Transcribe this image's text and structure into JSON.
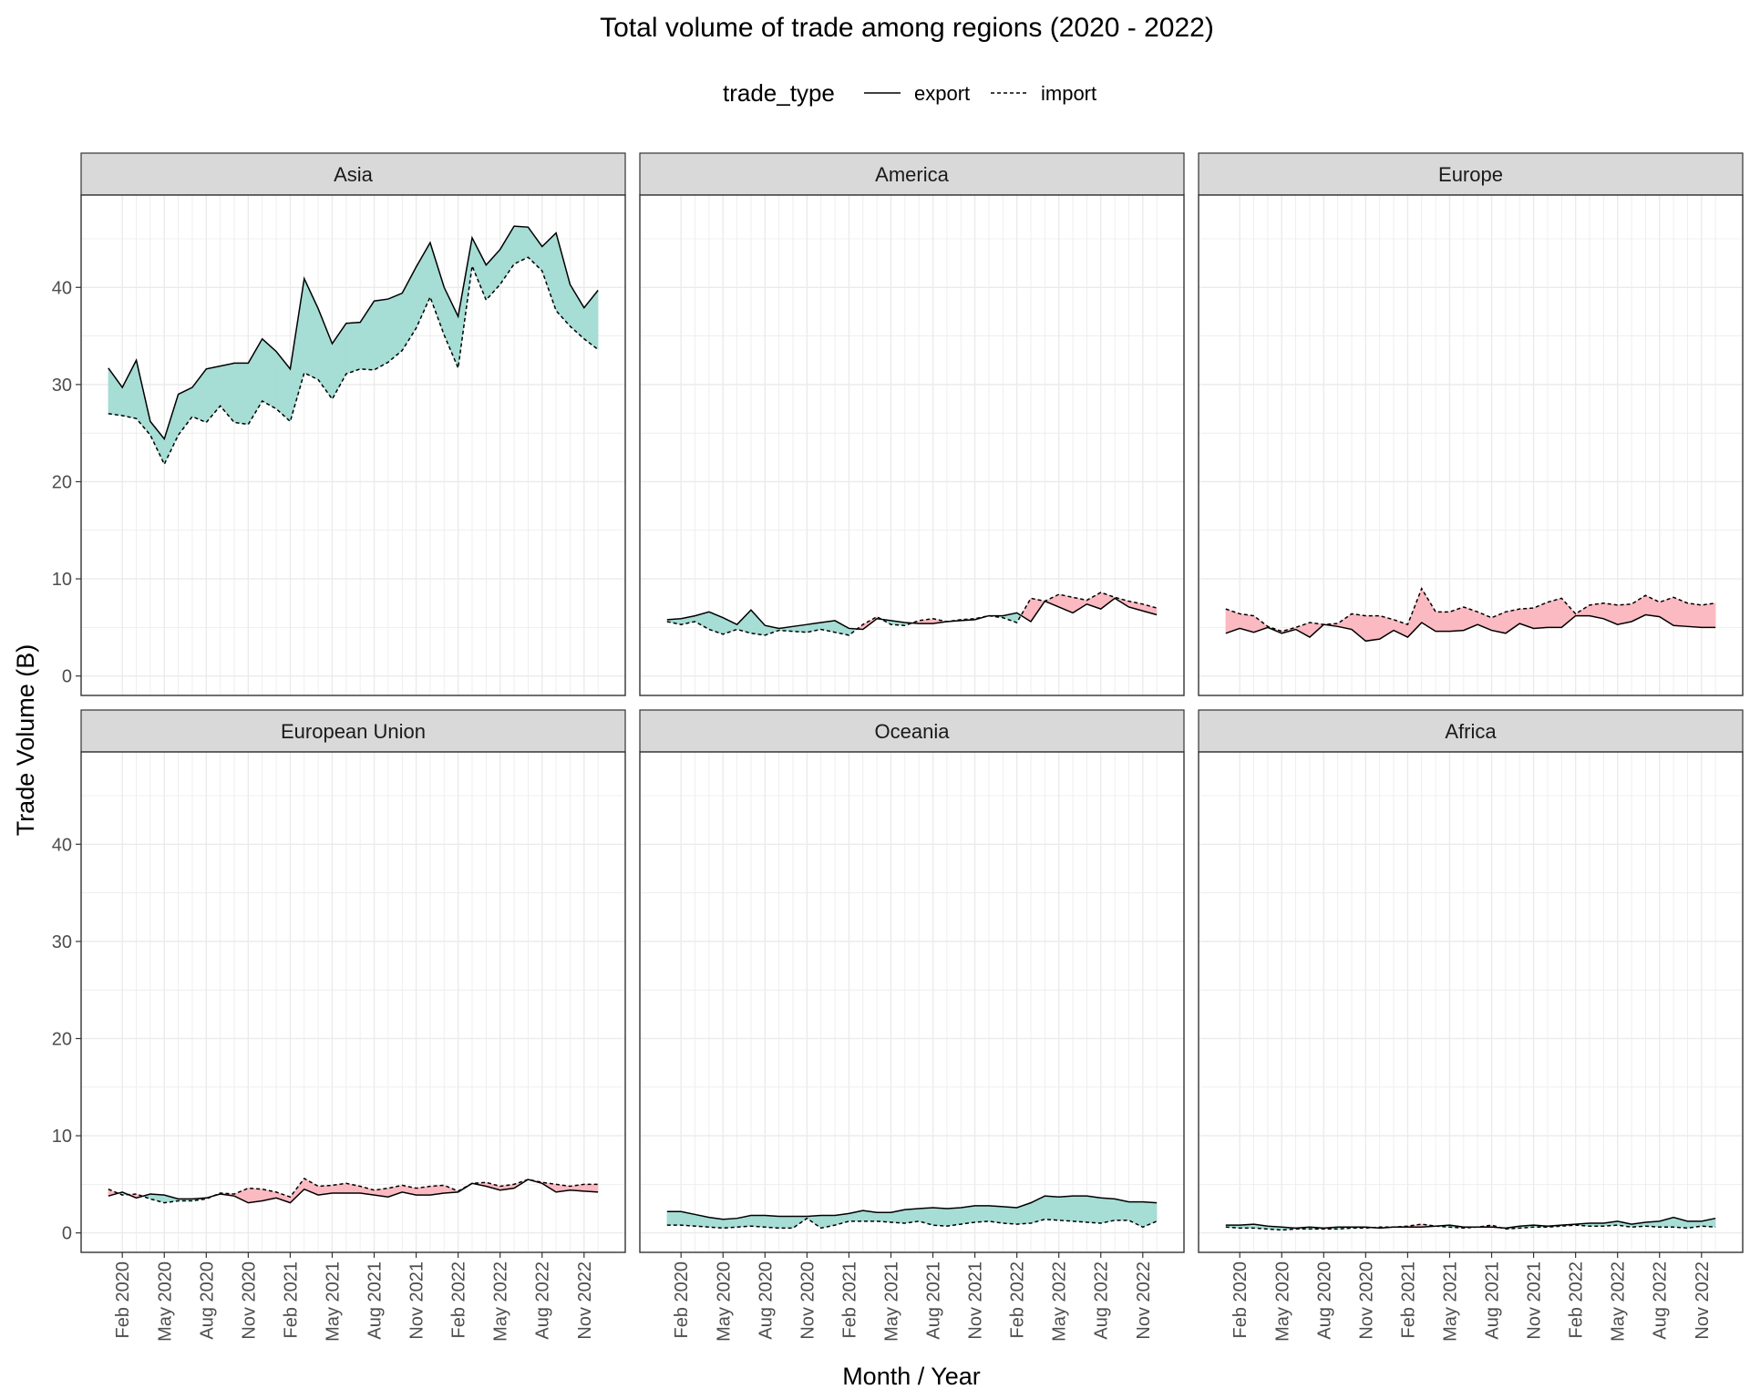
{
  "chart_data": {
    "type": "area",
    "title": "Total volume of trade among regions (2020 - 2022)",
    "xlabel": "Month / Year",
    "ylabel": "Trade Volume (B)",
    "legend": {
      "title": "trade_type",
      "placement": "top",
      "items": [
        {
          "name": "export",
          "linetype": "solid"
        },
        {
          "name": "import",
          "linetype": "dashed"
        }
      ]
    },
    "colors": {
      "export_greater_fill": "#a6ddd5",
      "import_greater_fill": "#fbbac1",
      "line": "#000000",
      "strip_bg": "#d9d9d9",
      "grid": "#ebebeb"
    },
    "ylim": [
      -2,
      49.5
    ],
    "y_ticks": [
      0,
      10,
      20,
      30,
      40
    ],
    "x_ticks": [
      "Feb 2020",
      "May 2020",
      "Aug 2020",
      "Nov 2020",
      "Feb 2021",
      "May 2021",
      "Aug 2021",
      "Nov 2021",
      "Feb 2022",
      "May 2022",
      "Aug 2022",
      "Nov 2022"
    ],
    "x": [
      "Jan 2020",
      "Feb 2020",
      "Mar 2020",
      "Apr 2020",
      "May 2020",
      "Jun 2020",
      "Jul 2020",
      "Aug 2020",
      "Sep 2020",
      "Oct 2020",
      "Nov 2020",
      "Dec 2020",
      "Jan 2021",
      "Feb 2021",
      "Mar 2021",
      "Apr 2021",
      "May 2021",
      "Jun 2021",
      "Jul 2021",
      "Aug 2021",
      "Sep 2021",
      "Oct 2021",
      "Nov 2021",
      "Dec 2021",
      "Jan 2022",
      "Feb 2022",
      "Mar 2022",
      "Apr 2022",
      "May 2022",
      "Jun 2022",
      "Jul 2022",
      "Aug 2022",
      "Sep 2022",
      "Oct 2022",
      "Nov 2022",
      "Dec 2022"
    ],
    "facets": [
      {
        "name": "Asia",
        "export": [
          31.7,
          29.7,
          32.5,
          26.2,
          24.4,
          29.0,
          29.7,
          31.6,
          31.9,
          32.2,
          32.2,
          34.7,
          33.4,
          31.6,
          40.9,
          37.8,
          34.2,
          36.3,
          36.4,
          38.6,
          38.8,
          39.4,
          42.1,
          44.6,
          40.0,
          37.0,
          45.1,
          42.3,
          43.9,
          46.3,
          46.2,
          44.2,
          45.6,
          40.3,
          37.9,
          39.7
        ],
        "import": [
          27.0,
          26.8,
          26.5,
          24.8,
          21.8,
          24.8,
          26.7,
          26.1,
          27.8,
          26.1,
          25.9,
          28.3,
          27.5,
          26.2,
          31.2,
          30.5,
          28.5,
          31.1,
          31.6,
          31.5,
          32.3,
          33.5,
          35.8,
          39.0,
          35.1,
          31.7,
          42.2,
          38.7,
          40.3,
          42.4,
          43.1,
          41.7,
          37.6,
          36.0,
          34.7,
          33.6
        ]
      },
      {
        "name": "America",
        "export": [
          5.8,
          5.9,
          6.2,
          6.6,
          6.0,
          5.3,
          6.8,
          5.2,
          4.9,
          5.1,
          5.3,
          5.5,
          5.7,
          4.9,
          4.8,
          5.9,
          5.7,
          5.5,
          5.4,
          5.4,
          5.6,
          5.7,
          5.8,
          6.2,
          6.2,
          6.5,
          5.6,
          7.7,
          7.1,
          6.5,
          7.4,
          6.9,
          8.0,
          7.1,
          6.7,
          6.3
        ],
        "import": [
          5.6,
          5.3,
          5.6,
          4.8,
          4.3,
          4.8,
          4.4,
          4.2,
          4.7,
          4.6,
          4.5,
          4.8,
          4.5,
          4.2,
          5.3,
          6.1,
          5.3,
          5.2,
          5.7,
          5.9,
          5.6,
          5.8,
          5.9,
          6.2,
          6.0,
          5.5,
          8.0,
          7.7,
          8.4,
          8.1,
          7.8,
          8.6,
          8.1,
          7.7,
          7.4,
          7.0
        ]
      },
      {
        "name": "Europe",
        "export": [
          4.4,
          4.9,
          4.5,
          5.0,
          4.4,
          4.8,
          4.0,
          5.3,
          5.1,
          4.8,
          3.6,
          3.8,
          4.7,
          4.0,
          5.5,
          4.6,
          4.6,
          4.7,
          5.3,
          4.7,
          4.4,
          5.4,
          4.9,
          5.0,
          5.0,
          6.2,
          6.2,
          5.9,
          5.3,
          5.6,
          6.3,
          6.1,
          5.2,
          5.1,
          5.0,
          5.0
        ],
        "import": [
          6.9,
          6.4,
          6.2,
          5.1,
          4.6,
          5.0,
          5.5,
          5.3,
          5.4,
          6.4,
          6.2,
          6.2,
          5.8,
          5.3,
          9.0,
          6.6,
          6.6,
          7.1,
          6.6,
          6.0,
          6.6,
          6.9,
          7.0,
          7.6,
          8.0,
          6.4,
          7.3,
          7.5,
          7.3,
          7.4,
          8.3,
          7.6,
          8.1,
          7.5,
          7.3,
          7.5
        ]
      },
      {
        "name": "European Union",
        "export": [
          3.8,
          4.2,
          3.6,
          4.0,
          3.9,
          3.5,
          3.5,
          3.6,
          4.0,
          3.8,
          3.1,
          3.3,
          3.6,
          3.1,
          4.5,
          3.9,
          4.1,
          4.1,
          4.1,
          3.9,
          3.7,
          4.2,
          3.9,
          3.9,
          4.1,
          4.2,
          5.1,
          4.8,
          4.4,
          4.6,
          5.5,
          5.1,
          4.2,
          4.4,
          4.3,
          4.2
        ],
        "import": [
          4.5,
          3.9,
          4.0,
          3.5,
          3.1,
          3.3,
          3.3,
          3.5,
          4.1,
          4.0,
          4.6,
          4.5,
          4.2,
          3.7,
          5.6,
          4.8,
          4.9,
          5.1,
          4.8,
          4.4,
          4.6,
          4.9,
          4.6,
          4.8,
          4.9,
          4.3,
          5.1,
          5.2,
          4.8,
          5.0,
          5.5,
          5.2,
          5.0,
          4.8,
          5.0,
          5.0
        ]
      },
      {
        "name": "Oceania",
        "export": [
          2.2,
          2.2,
          1.9,
          1.6,
          1.4,
          1.5,
          1.8,
          1.8,
          1.7,
          1.7,
          1.7,
          1.8,
          1.8,
          2.0,
          2.3,
          2.1,
          2.1,
          2.4,
          2.5,
          2.6,
          2.5,
          2.6,
          2.8,
          2.8,
          2.7,
          2.6,
          3.1,
          3.8,
          3.7,
          3.8,
          3.8,
          3.6,
          3.5,
          3.2,
          3.2,
          3.1
        ],
        "import": [
          0.8,
          0.8,
          0.7,
          0.6,
          0.5,
          0.6,
          0.7,
          0.6,
          0.5,
          0.5,
          1.5,
          0.5,
          0.8,
          1.2,
          1.2,
          1.2,
          1.1,
          1.0,
          1.2,
          0.8,
          0.7,
          0.9,
          1.1,
          1.2,
          1.0,
          0.9,
          1.0,
          1.4,
          1.3,
          1.2,
          1.1,
          1.0,
          1.3,
          1.3,
          0.6,
          1.2
        ]
      },
      {
        "name": "Africa",
        "export": [
          0.8,
          0.8,
          0.9,
          0.7,
          0.6,
          0.5,
          0.6,
          0.5,
          0.6,
          0.6,
          0.6,
          0.5,
          0.6,
          0.6,
          0.6,
          0.7,
          0.8,
          0.6,
          0.6,
          0.6,
          0.5,
          0.7,
          0.8,
          0.7,
          0.8,
          0.9,
          1.0,
          1.0,
          1.2,
          0.9,
          1.1,
          1.2,
          1.6,
          1.2,
          1.2,
          1.5
        ],
        "import": [
          0.6,
          0.5,
          0.5,
          0.4,
          0.3,
          0.4,
          0.4,
          0.4,
          0.4,
          0.5,
          0.5,
          0.6,
          0.6,
          0.7,
          0.9,
          0.7,
          0.6,
          0.5,
          0.6,
          0.8,
          0.4,
          0.5,
          0.6,
          0.6,
          0.7,
          0.8,
          0.7,
          0.7,
          0.8,
          0.6,
          0.7,
          0.6,
          0.6,
          0.5,
          0.7,
          0.6
        ]
      }
    ]
  }
}
